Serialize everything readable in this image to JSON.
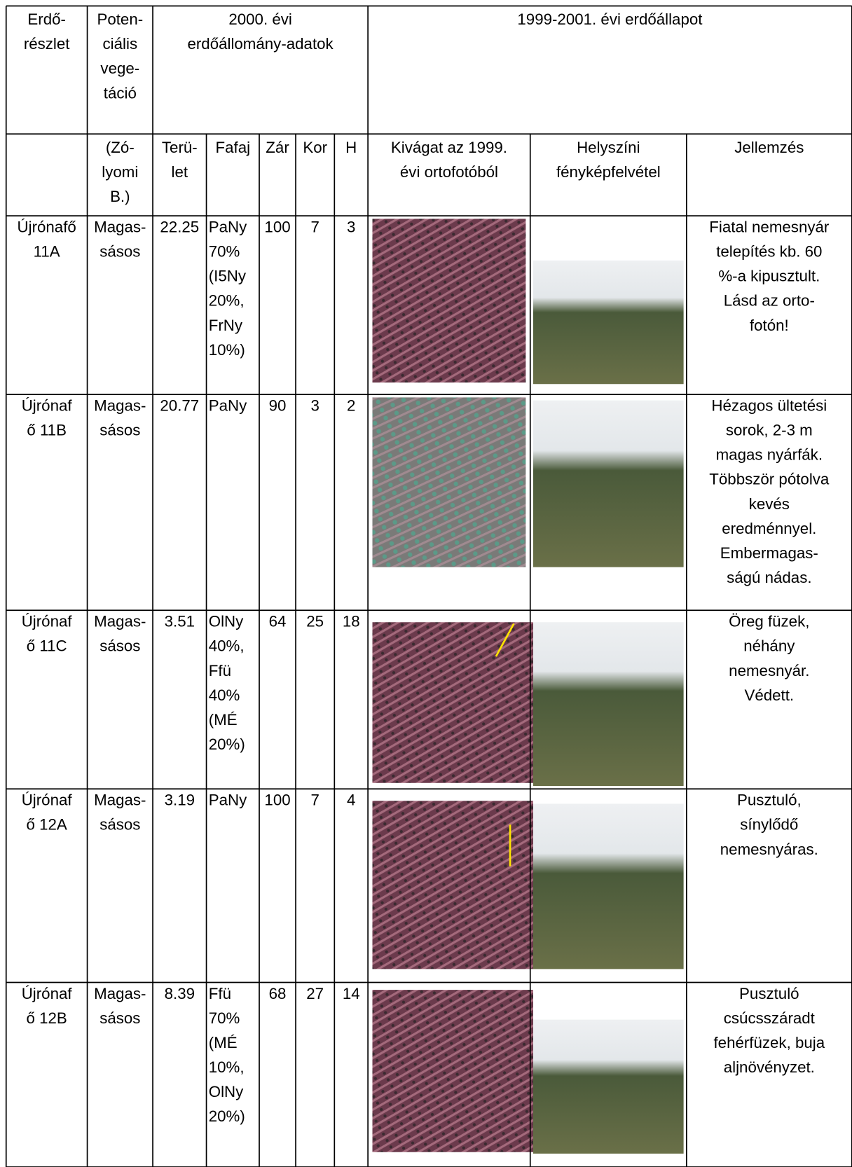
{
  "header": {
    "row1": [
      [
        "Erdő-",
        "részlet"
      ],
      [
        "Poten-",
        "ciális",
        "vege-",
        "táció"
      ],
      [
        "2000. évi",
        "erdőállomány-adatok"
      ],
      [
        "1999-2001. évi erdőállapot"
      ]
    ],
    "row2": [
      [
        "(Zó-",
        "lyomi",
        "B.)"
      ],
      [
        "Terü-",
        "let"
      ],
      [
        "Fafaj"
      ],
      [
        "Zár"
      ],
      [
        "Kor"
      ],
      [
        "H"
      ],
      [
        "Kivágat az 1999.",
        "évi ortofotóból"
      ],
      [
        "Helyszíni",
        "fényképfelvétel"
      ],
      [
        "Jellemzés"
      ]
    ]
  },
  "rows": [
    {
      "cells": [
        [
          "Újrónafő",
          "11A"
        ],
        [
          "Magas-",
          "sásos"
        ],
        [
          "22.25"
        ],
        [
          "PaNy",
          "70%",
          "(I5Ny",
          "20%,",
          "FrNy",
          "10%)"
        ],
        [
          "100"
        ],
        [
          "7"
        ],
        [
          "3"
        ],
        [
          "Fiatal nemesnyár",
          "telepítés kb. 60",
          "%-a kipusztult.",
          "Lásd az orto-",
          "fotón!"
        ]
      ]
    },
    {
      "cells": [
        [
          "Újrónaf",
          "ő 11B"
        ],
        [
          "Magas-",
          "sásos"
        ],
        [
          "20.77"
        ],
        [
          "PaNy"
        ],
        [
          "90"
        ],
        [
          "3"
        ],
        [
          "2"
        ],
        [
          "Hézagos ültetési",
          "sorok, 2-3 m",
          "magas nyárfák.",
          "Többször pótolva",
          "kevés",
          "eredménnyel.",
          "Embermagas-",
          "ságú nádas."
        ]
      ]
    },
    {
      "cells": [
        [
          "Újrónaf",
          "ő 11C"
        ],
        [
          "Magas-",
          "sásos"
        ],
        [
          "3.51"
        ],
        [
          "OlNy",
          "40%,",
          "Ffü",
          "40%",
          "(MÉ",
          "20%)"
        ],
        [
          "64"
        ],
        [
          "25"
        ],
        [
          "18"
        ],
        [
          "Öreg füzek,",
          "néhány",
          "nemesnyár.",
          "Védett."
        ]
      ]
    },
    {
      "cells": [
        [
          "Újrónaf",
          "ő 12A"
        ],
        [
          "Magas-",
          "sásos"
        ],
        [
          "3.19"
        ],
        [
          "PaNy"
        ],
        [
          "100"
        ],
        [
          "7"
        ],
        [
          "4"
        ],
        [
          "Pusztuló,",
          "sínylődő",
          "nemesnyáras."
        ]
      ]
    },
    {
      "cells": [
        [
          "Újrónaf",
          "ő 12B"
        ],
        [
          "Magas-",
          "sásos"
        ],
        [
          "8.39"
        ],
        [
          "Ffü",
          "70%",
          "(MÉ",
          "10%,",
          "OlNy",
          "20%)"
        ],
        [
          "68"
        ],
        [
          "27"
        ],
        [
          "14"
        ],
        [
          "Pusztuló",
          "csúcsszáradt",
          "fehérfüzek, buja",
          "aljnövényzet."
        ]
      ]
    }
  ]
}
